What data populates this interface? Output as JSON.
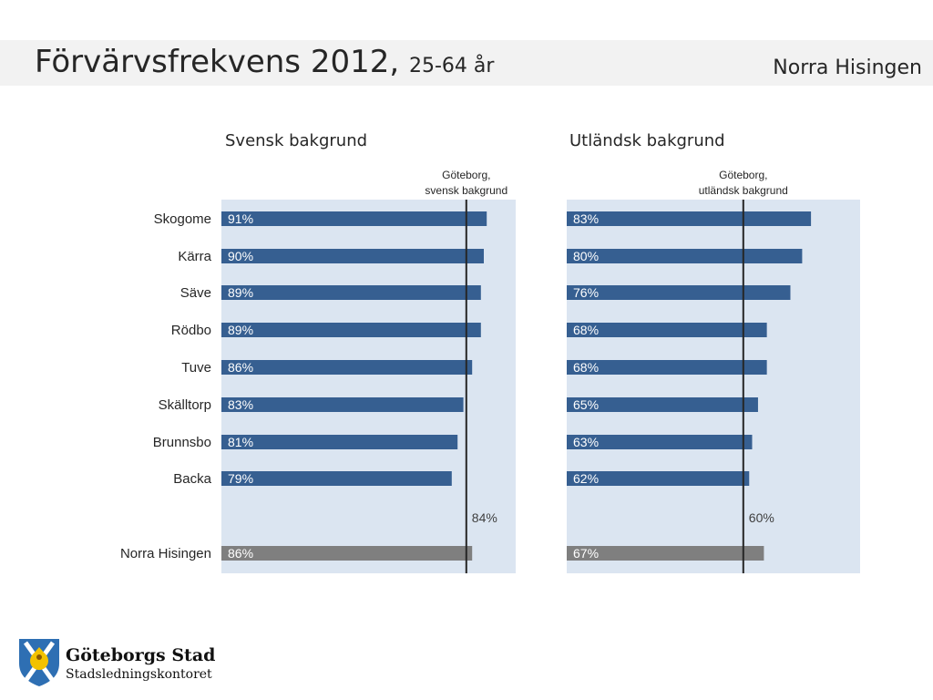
{
  "header": {
    "title": "Förvärvsfrekvens 2012,",
    "subtitle": "25-64 år",
    "region": "Norra Hisingen"
  },
  "colors": {
    "bar": "#365f91",
    "total_bar": "#7f7f7f",
    "panel_bg": "#dbe5f1",
    "ref_line": "#262626"
  },
  "chart_data": [
    {
      "type": "bar",
      "orientation": "horizontal",
      "title": "Svensk bakgrund",
      "categories": [
        "Skogome",
        "Kärra",
        "Säve",
        "Rödbo",
        "Tuve",
        "Skälltorp",
        "Brunnsbo",
        "Backa",
        "Norra Hisingen"
      ],
      "values": [
        91,
        90,
        89,
        89,
        86,
        83,
        81,
        79,
        86
      ],
      "value_labels": [
        "91%",
        "90%",
        "89%",
        "89%",
        "86%",
        "83%",
        "81%",
        "79%",
        "86%"
      ],
      "total_category": "Norra Hisingen",
      "reference": {
        "label_line1": "Göteborg,",
        "label_line2": "svensk bakgrund",
        "value": 84,
        "value_label": "84%"
      },
      "xlim": [
        0,
        100
      ]
    },
    {
      "type": "bar",
      "orientation": "horizontal",
      "title": "Utländsk bakgrund",
      "categories": [
        "Skogome",
        "Kärra",
        "Säve",
        "Rödbo",
        "Tuve",
        "Skälltorp",
        "Brunnsbo",
        "Backa",
        "Norra Hisingen"
      ],
      "values": [
        83,
        80,
        76,
        68,
        68,
        65,
        63,
        62,
        67
      ],
      "value_labels": [
        "83%",
        "80%",
        "76%",
        "68%",
        "68%",
        "65%",
        "63%",
        "62%",
        "67%"
      ],
      "total_category": "Norra Hisingen",
      "reference": {
        "label_line1": "Göteborg,",
        "label_line2": "utländsk bakgrund",
        "value": 60,
        "value_label": "60%"
      },
      "xlim": [
        0,
        100
      ]
    }
  ],
  "footer": {
    "logo_name": "Göteborgs Stad",
    "logo_sub": "Stadsledningskontoret",
    "logo_icon": "lion-crest-icon"
  }
}
